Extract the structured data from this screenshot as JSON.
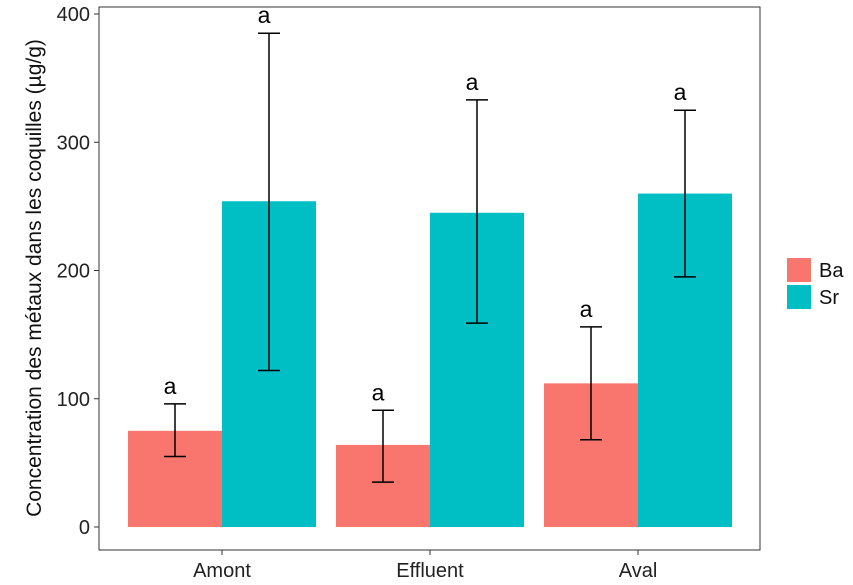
{
  "chart_data": {
    "type": "bar",
    "categories": [
      "Amont",
      "Effluent",
      "Aval"
    ],
    "ylabel": "Concentration des métaux dans les coquilles (µg/g)",
    "xlabel": "",
    "ylim": [
      0,
      400
    ],
    "yticks": [
      0,
      100,
      200,
      300,
      400
    ],
    "grid": false,
    "legend_position": "right",
    "series": [
      {
        "name": "Ba",
        "color": "#F8766D",
        "values": [
          75,
          64,
          112
        ],
        "error_low": [
          55,
          35,
          68
        ],
        "error_high": [
          96,
          91,
          156
        ],
        "labels": [
          "a",
          "a",
          "a"
        ]
      },
      {
        "name": "Sr",
        "color": "#00BFC4",
        "values": [
          254,
          245,
          260
        ],
        "error_low": [
          122,
          159,
          195
        ],
        "error_high": [
          385,
          333,
          325
        ],
        "labels": [
          "a",
          "a",
          "a"
        ]
      }
    ]
  }
}
